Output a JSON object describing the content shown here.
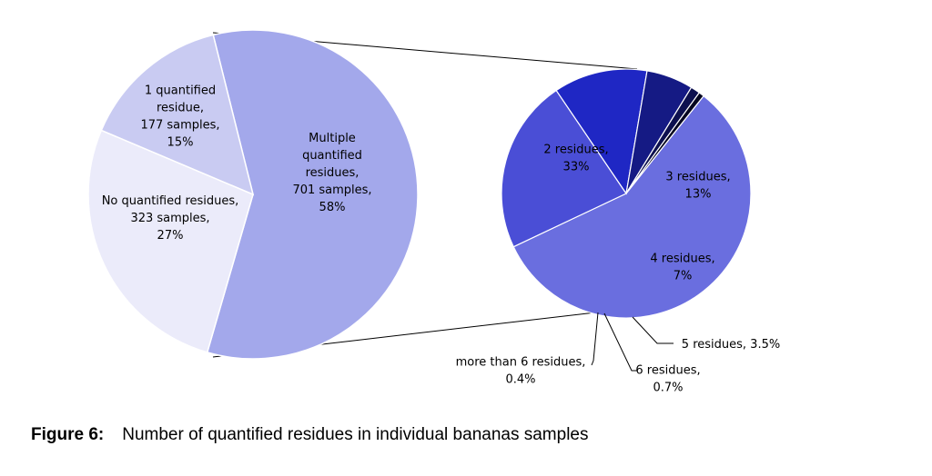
{
  "caption": {
    "label": "Figure 6:",
    "text": "Number of quantified residues in individual bananas samples"
  },
  "chart_data": [
    {
      "type": "pie",
      "slices": [
        {
          "label": [
            "Multiple",
            "quantified",
            "residues,",
            "701 samples,",
            "58%"
          ],
          "samples": 701,
          "percent": 58,
          "color": "#a3a8eb"
        },
        {
          "label": [
            "No quantified residues,",
            "323 samples,",
            "27%"
          ],
          "samples": 323,
          "percent": 27,
          "color": "#ebebfa"
        },
        {
          "label": [
            "1 quantified",
            "residue,",
            "177 samples,",
            "15%"
          ],
          "samples": 177,
          "percent": 15,
          "color": "#c9cbf2"
        }
      ]
    },
    {
      "type": "pie",
      "breakdown_of": "Multiple quantified residues",
      "slices": [
        {
          "label": [
            "2 residues,",
            "33%"
          ],
          "percent": 33,
          "color": "#6a6edf"
        },
        {
          "label": [
            "3 residues,",
            "13%"
          ],
          "percent": 13,
          "color": "#4a4ed6"
        },
        {
          "label": [
            "4 residues,",
            "7%"
          ],
          "percent": 7,
          "color": "#1f27c4"
        },
        {
          "label": [
            "5 residues, 3.5%"
          ],
          "percent": 3.5,
          "color": "#151a84"
        },
        {
          "label": [
            "6 residues,",
            "0.7%"
          ],
          "percent": 0.7,
          "color": "#0d104f"
        },
        {
          "label": [
            "more than 6 residues,",
            "0.4%"
          ],
          "percent": 0.4,
          "color": "#050620"
        }
      ]
    }
  ]
}
